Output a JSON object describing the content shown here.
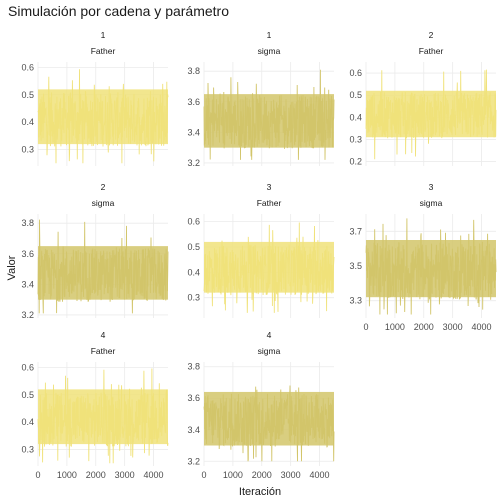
{
  "title": "Simulación por cadena y parámetro",
  "chart_data": {
    "type": "line",
    "title": "Simulación por cadena y parámetro",
    "xlabel": "Iteración",
    "ylabel": "Valor",
    "grid": true,
    "legend": "none",
    "x_range": [
      0,
      4500
    ],
    "x_ticks": [
      0,
      1000,
      2000,
      3000,
      4000
    ],
    "x_tick_labels": [
      "0",
      "1000",
      "2000",
      "3000",
      "4000"
    ],
    "colors": {
      "Father": "#F0E27A",
      "sigma": "#D2C56A",
      "panel_bg": "#ffffff",
      "grid": "#ebebeb"
    },
    "panels": [
      {
        "chain": "1",
        "parameter": "Father",
        "ylim": [
          0.24,
          0.62
        ],
        "yticks": [
          0.3,
          0.4,
          0.5,
          0.6
        ],
        "ytick_labels": [
          "0.3",
          "0.4",
          "0.5",
          "0.6"
        ],
        "mean": 0.41,
        "typical_low": 0.32,
        "typical_high": 0.52,
        "min": 0.25,
        "max": 0.61,
        "show_x_axis": false
      },
      {
        "chain": "1",
        "parameter": "sigma",
        "ylim": [
          3.18,
          3.86
        ],
        "yticks": [
          3.2,
          3.4,
          3.6,
          3.8
        ],
        "ytick_labels": [
          "3.2",
          "3.4",
          "3.6",
          "3.8"
        ],
        "mean": 3.47,
        "typical_low": 3.3,
        "typical_high": 3.65,
        "min": 3.22,
        "max": 3.84,
        "show_x_axis": false
      },
      {
        "chain": "2",
        "parameter": "Father",
        "ylim": [
          0.18,
          0.65
        ],
        "yticks": [
          0.2,
          0.3,
          0.4,
          0.5,
          0.6
        ],
        "ytick_labels": [
          "0.2",
          "0.3",
          "0.4",
          "0.5",
          "0.6"
        ],
        "mean": 0.41,
        "typical_low": 0.31,
        "typical_high": 0.52,
        "min": 0.2,
        "max": 0.62,
        "show_x_axis": false
      },
      {
        "chain": "2",
        "parameter": "sigma",
        "ylim": [
          3.18,
          3.86
        ],
        "yticks": [
          3.2,
          3.4,
          3.6,
          3.8
        ],
        "ytick_labels": [
          "3.2",
          "3.4",
          "3.6",
          "3.8"
        ],
        "mean": 3.46,
        "typical_low": 3.3,
        "typical_high": 3.65,
        "min": 3.21,
        "max": 3.83,
        "show_x_axis": false
      },
      {
        "chain": "3",
        "parameter": "Father",
        "ylim": [
          0.22,
          0.63
        ],
        "yticks": [
          0.3,
          0.4,
          0.5,
          0.6
        ],
        "ytick_labels": [
          "0.3",
          "0.4",
          "0.5",
          "0.6"
        ],
        "mean": 0.41,
        "typical_low": 0.32,
        "typical_high": 0.52,
        "min": 0.24,
        "max": 0.6,
        "show_x_axis": false
      },
      {
        "chain": "3",
        "parameter": "sigma",
        "ylim": [
          3.2,
          3.8
        ],
        "yticks": [
          3.3,
          3.5,
          3.7
        ],
        "ytick_labels": [
          "3.3",
          "3.5",
          "3.7"
        ],
        "mean": 3.47,
        "typical_low": 3.32,
        "typical_high": 3.65,
        "min": 3.22,
        "max": 3.78,
        "show_x_axis": true
      },
      {
        "chain": "4",
        "parameter": "Father",
        "ylim": [
          0.24,
          0.62
        ],
        "yticks": [
          0.3,
          0.4,
          0.5,
          0.6
        ],
        "ytick_labels": [
          "0.3",
          "0.4",
          "0.5",
          "0.6"
        ],
        "mean": 0.41,
        "typical_low": 0.32,
        "typical_high": 0.52,
        "min": 0.25,
        "max": 0.6,
        "show_x_axis": true
      },
      {
        "chain": "4",
        "parameter": "sigma",
        "ylim": [
          3.17,
          3.83
        ],
        "yticks": [
          3.2,
          3.4,
          3.6,
          3.8
        ],
        "ytick_labels": [
          "3.2",
          "3.4",
          "3.6",
          "3.8"
        ],
        "mean": 3.46,
        "typical_low": 3.3,
        "typical_high": 3.64,
        "min": 3.2,
        "max": 3.8,
        "show_x_axis": true
      }
    ]
  }
}
